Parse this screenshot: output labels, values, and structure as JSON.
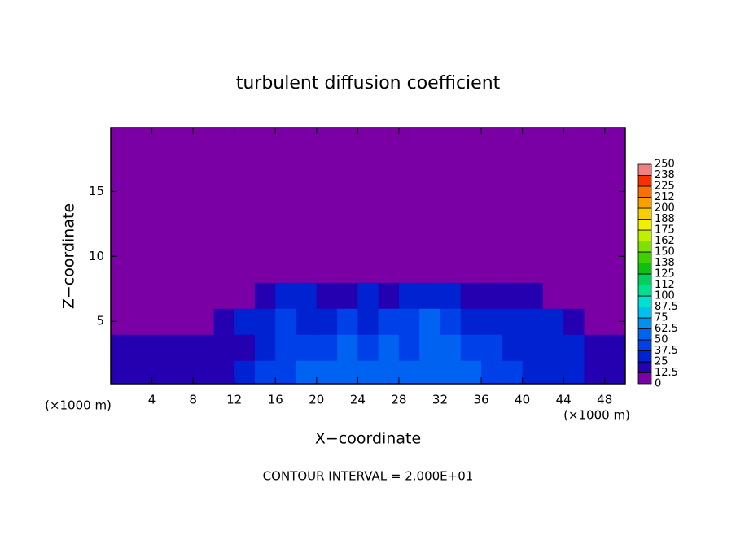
{
  "chart_data": {
    "type": "heatmap",
    "title": "turbulent diffusion coefficient",
    "x_label": "X−coordinate",
    "y_label": "Z−coordinate",
    "x_unit_label": "(×1000 m)",
    "y_unit_label": "(×1000 m)",
    "footnote": "CONTOUR INTERVAL = 2.000E+01",
    "xlim": [
      0,
      50
    ],
    "ylim": [
      0.2,
      19.9
    ],
    "xticks": [
      4,
      8,
      12,
      16,
      20,
      24,
      28,
      32,
      36,
      40,
      44,
      48
    ],
    "yticks": [
      5,
      10,
      15
    ],
    "x": [
      1,
      3,
      5,
      7,
      9,
      11,
      13,
      15,
      17,
      19,
      21,
      23,
      25,
      27,
      29,
      31,
      33,
      35,
      37,
      39,
      41,
      43,
      45,
      47,
      49
    ],
    "y": [
      1,
      3,
      5,
      7,
      9
    ],
    "z": [
      [
        20,
        20,
        20,
        20,
        20,
        20,
        25,
        40,
        45,
        50,
        50,
        55,
        60,
        55,
        50,
        55,
        60,
        50,
        45,
        40,
        35,
        30,
        25,
        20,
        20
      ],
      [
        15,
        15,
        15,
        15,
        15,
        20,
        20,
        30,
        45,
        40,
        45,
        50,
        45,
        55,
        45,
        55,
        50,
        45,
        40,
        35,
        35,
        30,
        25,
        20,
        15
      ],
      [
        10,
        10,
        10,
        10,
        10,
        15,
        25,
        30,
        40,
        35,
        30,
        40,
        35,
        45,
        40,
        50,
        40,
        35,
        30,
        30,
        30,
        25,
        20,
        10,
        10
      ],
      [
        0,
        0,
        0,
        0,
        0,
        0,
        10,
        20,
        25,
        25,
        15,
        15,
        25,
        20,
        25,
        25,
        25,
        20,
        20,
        15,
        15,
        10,
        0,
        0,
        0
      ],
      [
        0,
        0,
        0,
        0,
        0,
        0,
        0,
        0,
        0,
        0,
        0,
        0,
        0,
        0,
        0,
        0,
        0,
        0,
        0,
        0,
        0,
        0,
        0,
        0,
        0
      ]
    ],
    "levels": [
      0,
      12.5,
      25,
      37.5,
      50,
      62.5,
      75,
      87.5,
      100,
      112,
      125,
      138,
      150,
      162,
      175,
      188,
      200,
      212,
      225,
      238,
      250
    ],
    "colors": [
      "#7a00a6",
      "#2400b0",
      "#0022d0",
      "#0040e8",
      "#0062f0",
      "#0090f0",
      "#00c0f0",
      "#00e0d0",
      "#00e090",
      "#00d060",
      "#10c010",
      "#40d000",
      "#80e000",
      "#c0f000",
      "#f0f000",
      "#f8d000",
      "#f8a000",
      "#f87000",
      "#f83000",
      "#f08080"
    ]
  }
}
